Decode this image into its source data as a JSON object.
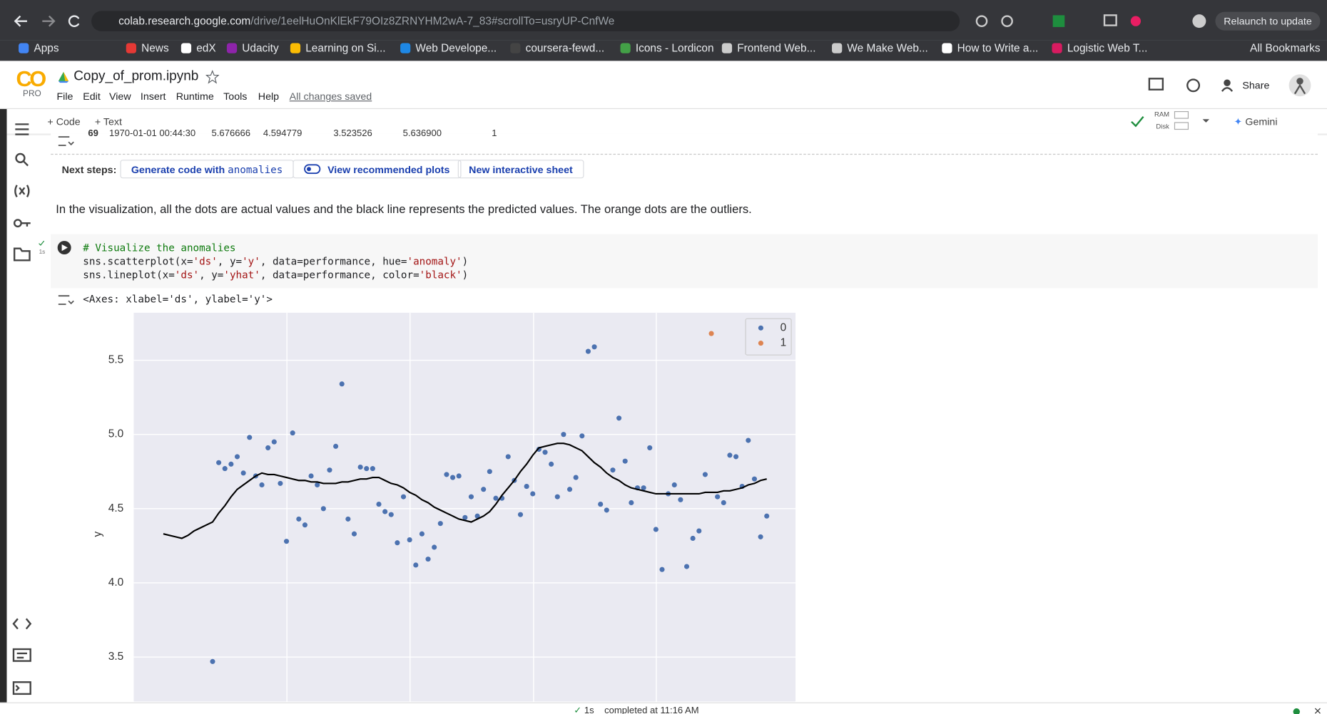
{
  "browser": {
    "url_host": "colab.research.google.com",
    "url_path": "/drive/1eelHuOnKlEkF79OIz8ZRNYHM2wA-7_83#scrollTo=usryUP-CnfWe",
    "relaunch": "Relaunch to update",
    "bookmarks": [
      "Apps",
      "News",
      "edX",
      "Udacity",
      "Learning on Si...",
      "Web Develope...",
      "coursera-fewd...",
      "Icons - Lordicon",
      "Frontend Web...",
      "We Make Web...",
      "How to Write a...",
      "Logistic Web T..."
    ],
    "all_bookmarks": "All Bookmarks"
  },
  "header": {
    "logo": "CO",
    "plan": "PRO",
    "filename": "Copy_of_prom.ipynb",
    "menu": [
      "File",
      "Edit",
      "View",
      "Insert",
      "Runtime",
      "Tools",
      "Help"
    ],
    "saved": "All changes saved",
    "share": "Share"
  },
  "toolbar": {
    "add_code": "+ Code",
    "add_text": "+ Text",
    "ram": "RAM",
    "disk": "Disk",
    "gemini": "Gemini"
  },
  "table_row": [
    "69",
    "1970-01-01 00:44:30",
    "5.676666",
    "4.594779",
    "3.523526",
    "5.636900",
    "1"
  ],
  "next_steps": {
    "label": "Next steps:",
    "generate": "Generate code with",
    "generate_code": "anomalies",
    "plots": "View recommended plots",
    "sheet": "New interactive sheet"
  },
  "text_cell": "In the visualization, all the dots are actual values and the black line represents the predicted values. The orange dots are the outliers.",
  "code_cell": {
    "exec_time": "1s",
    "lines": [
      "# Visualize the anomalies",
      "sns.scatterplot(x='ds', y='y', data=performance, hue='anomaly')",
      "sns.lineplot(x='ds', y='yhat', data=performance, color='black')"
    ],
    "output": "<Axes: xlabel='ds', ylabel='y'>"
  },
  "status": {
    "time": "1s",
    "text": "completed at 11:16 AM"
  },
  "chart_data": {
    "type": "scatter",
    "ylabel": "y",
    "grid": true,
    "background": "#eaeaf2",
    "legend": "upper right",
    "categories": [
      null,
      null,
      null,
      null,
      null,
      null,
      null,
      null,
      null,
      null,
      null,
      null,
      null,
      null,
      null,
      null,
      null,
      null,
      null,
      null,
      null,
      null,
      null,
      null,
      null,
      null,
      null,
      null,
      null,
      null,
      null,
      null,
      null,
      null,
      null,
      null,
      null,
      null,
      null,
      null,
      null,
      null,
      null,
      null,
      null,
      null,
      null,
      null,
      null,
      null,
      null,
      null,
      null,
      null,
      null,
      null,
      null,
      null,
      null,
      null,
      null,
      null,
      null,
      null,
      null,
      null,
      null,
      null,
      null,
      null,
      null,
      null,
      null,
      null,
      null,
      null,
      null,
      null,
      null,
      null,
      null,
      null,
      null,
      null,
      null,
      null,
      null,
      null,
      null,
      null,
      null,
      null,
      null,
      null,
      null,
      null,
      null,
      null,
      null
    ],
    "ylim": [
      3.2,
      5.82
    ],
    "yticks": [
      3.5,
      {
        "value": 4,
        "label": "4.0"
      },
      4.5,
      {
        "value": 5,
        "label": "5.0"
      },
      5.5
    ],
    "series": [
      {
        "name": "0",
        "color": "#4c72b0",
        "values": [
          null,
          null,
          null,
          null,
          null,
          null,
          null,
          null,
          3.47,
          4.81,
          4.77,
          4.8,
          4.85,
          4.74,
          4.98,
          4.72,
          4.66,
          4.91,
          4.95,
          4.67,
          4.28,
          5.01,
          4.43,
          4.39,
          4.72,
          4.66,
          4.5,
          4.76,
          4.92,
          5.34,
          4.43,
          4.33,
          4.78,
          4.77,
          4.77,
          4.53,
          4.48,
          4.46,
          4.27,
          4.58,
          4.29,
          4.12,
          4.33,
          4.16,
          4.24,
          4.4,
          4.73,
          4.71,
          4.72,
          4.44,
          4.58,
          4.45,
          4.63,
          4.75,
          4.57,
          4.57,
          4.85,
          4.69,
          4.46,
          4.65,
          4.6,
          4.9,
          4.88,
          4.8,
          4.58,
          5.0,
          4.63,
          4.71,
          4.99,
          5.56,
          5.59,
          4.53,
          4.49,
          4.76,
          5.11,
          4.82,
          4.54,
          4.64,
          4.64,
          4.91,
          4.36,
          4.09,
          4.6,
          4.66,
          4.56,
          4.11,
          4.3,
          4.35,
          4.73,
          null,
          4.58,
          4.54,
          4.86,
          4.85,
          4.65,
          4.96,
          4.7,
          4.31,
          4.45
        ]
      },
      {
        "name": "1",
        "color": "#dd8452",
        "values": [
          null,
          null,
          null,
          null,
          null,
          null,
          null,
          null,
          null,
          null,
          null,
          null,
          null,
          null,
          null,
          null,
          null,
          null,
          null,
          null,
          null,
          null,
          null,
          null,
          null,
          null,
          null,
          null,
          null,
          null,
          null,
          null,
          null,
          null,
          null,
          null,
          null,
          null,
          null,
          null,
          null,
          null,
          null,
          null,
          null,
          null,
          null,
          null,
          null,
          null,
          null,
          null,
          null,
          null,
          null,
          null,
          null,
          null,
          null,
          null,
          null,
          null,
          null,
          null,
          null,
          null,
          null,
          null,
          null,
          null,
          null,
          null,
          null,
          null,
          null,
          null,
          null,
          null,
          null,
          null,
          null,
          null,
          null,
          null,
          null,
          null,
          null,
          null,
          null,
          5.68,
          null,
          null,
          null,
          null,
          null,
          null,
          null,
          null,
          null
        ]
      },
      {
        "type": "line",
        "color": "#000000",
        "values": [
          4.33,
          4.32,
          4.31,
          4.3,
          4.32,
          4.35,
          4.37,
          4.39,
          4.41,
          4.47,
          4.52,
          4.58,
          4.63,
          4.66,
          4.69,
          4.72,
          4.74,
          4.73,
          4.73,
          4.72,
          4.71,
          4.7,
          4.69,
          4.69,
          4.68,
          4.68,
          4.67,
          4.67,
          4.67,
          4.68,
          4.68,
          4.69,
          4.7,
          4.7,
          4.71,
          4.71,
          4.69,
          4.67,
          4.66,
          4.64,
          4.61,
          4.59,
          4.56,
          4.54,
          4.51,
          4.49,
          4.47,
          4.45,
          4.43,
          4.42,
          4.41,
          4.43,
          4.45,
          4.48,
          4.53,
          4.59,
          4.64,
          4.69,
          4.75,
          4.8,
          4.86,
          4.91,
          4.92,
          4.93,
          4.94,
          4.94,
          4.93,
          4.91,
          4.89,
          4.85,
          4.81,
          4.78,
          4.74,
          4.71,
          4.69,
          4.66,
          4.64,
          4.63,
          4.62,
          4.61,
          4.6,
          4.6,
          4.6,
          4.6,
          4.6,
          4.6,
          4.6,
          4.6,
          4.61,
          4.61,
          4.61,
          4.62,
          4.62,
          4.63,
          4.64,
          4.66,
          4.67,
          4.69,
          4.7
        ]
      }
    ]
  }
}
